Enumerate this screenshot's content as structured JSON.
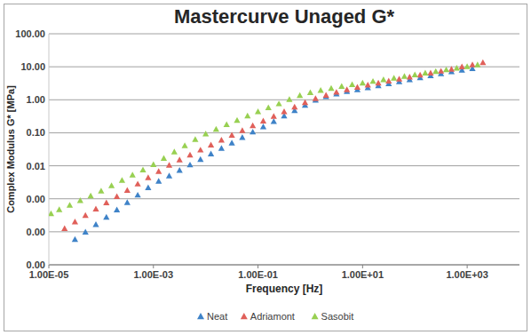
{
  "chart_data": {
    "type": "scatter",
    "title": "Mastercurve Unaged G*",
    "x_label": "Frequency [Hz]",
    "y_label": "Complex Modulus G* [MPa]",
    "log": true,
    "grid": true,
    "legend": "bottom",
    "marker": "triangle",
    "xlim": [
      1e-05,
      10000
    ],
    "xticks": [
      {
        "value": 1e-05,
        "label": "1.00E-05"
      },
      {
        "value": 0.001,
        "label": "1.00E-03"
      },
      {
        "value": 0.1,
        "label": "1.00E-01"
      },
      {
        "value": 10,
        "label": "1.00E+01"
      },
      {
        "value": 1000,
        "label": "1.00E+03"
      }
    ],
    "ylim": [
      1e-05,
      100
    ],
    "yticks": [
      {
        "value": 1e-05,
        "label": "0.00"
      },
      {
        "value": 0.0001,
        "label": "0.00"
      },
      {
        "value": 0.001,
        "label": "0.00"
      },
      {
        "value": 0.01,
        "label": "0.01"
      },
      {
        "value": 0.1,
        "label": "0.10"
      },
      {
        "value": 1,
        "label": "1.00"
      },
      {
        "value": 10,
        "label": "10.00"
      },
      {
        "value": 100,
        "label": "100.00"
      }
    ],
    "series": [
      {
        "name": "Neat",
        "color": "#3f83c8",
        "x": [
          3.16e-05,
          5.01e-05,
          7.94e-05,
          0.000126,
          0.0002,
          0.000316,
          0.000501,
          0.000794,
          0.00126,
          0.002,
          0.00316,
          0.00501,
          0.00794,
          0.0126,
          0.02,
          0.0316,
          0.0501,
          0.0794,
          0.126,
          0.2,
          0.316,
          0.501,
          0.794,
          1.26,
          2.0,
          3.16,
          5.01,
          7.94,
          12.6,
          20.0,
          31.6,
          50.1,
          79.4,
          126,
          200,
          316,
          501,
          794,
          1260
        ],
        "values": [
          5.9e-05,
          9.9e-05,
          0.000166,
          0.000277,
          0.000463,
          0.000776,
          0.0013,
          0.00218,
          0.00341,
          0.005,
          0.00733,
          0.0107,
          0.0157,
          0.0231,
          0.0338,
          0.0495,
          0.0726,
          0.106,
          0.152,
          0.222,
          0.324,
          0.472,
          0.689,
          0.98,
          1.26,
          1.51,
          1.78,
          2.04,
          2.34,
          2.69,
          3.09,
          3.55,
          4.07,
          4.68,
          5.37,
          6.17,
          7.08,
          7.94,
          8.91
        ]
      },
      {
        "name": "Adriamont",
        "color": "#e0605a",
        "x": [
          2e-05,
          3.16e-05,
          5.01e-05,
          7.94e-05,
          0.000126,
          0.0002,
          0.000316,
          0.000501,
          0.000794,
          0.00126,
          0.002,
          0.00316,
          0.00501,
          0.00794,
          0.0126,
          0.02,
          0.0316,
          0.0501,
          0.0794,
          0.126,
          0.2,
          0.316,
          0.501,
          0.794,
          1.26,
          2.0,
          3.16,
          5.01,
          7.94,
          12.6,
          20.0,
          31.6,
          50.1,
          79.4,
          126,
          200,
          316,
          501,
          794,
          1260,
          2000
        ],
        "values": [
          0.000126,
          0.0002,
          0.000316,
          0.00049,
          0.000759,
          0.00117,
          0.00182,
          0.00282,
          0.00437,
          0.00676,
          0.0105,
          0.0151,
          0.0214,
          0.0302,
          0.0427,
          0.0603,
          0.0851,
          0.117,
          0.166,
          0.229,
          0.316,
          0.437,
          0.603,
          0.832,
          1.1,
          1.38,
          1.7,
          2.04,
          2.4,
          2.82,
          3.24,
          3.72,
          4.27,
          4.9,
          5.62,
          6.46,
          7.41,
          8.51,
          10.0,
          11.5,
          13.5
        ]
      },
      {
        "name": "Sasobit",
        "color": "#98d052",
        "x": [
          1.1e-05,
          1.58e-05,
          2.51e-05,
          3.98e-05,
          6.31e-05,
          0.0001,
          0.000158,
          0.000251,
          0.000398,
          0.000631,
          0.001,
          0.00158,
          0.00251,
          0.00398,
          0.00631,
          0.01,
          0.0158,
          0.0251,
          0.0398,
          0.0631,
          0.1,
          0.158,
          0.251,
          0.398,
          0.631,
          1.0,
          1.58,
          2.51,
          3.98,
          6.31,
          10.0,
          15.8,
          25.1,
          39.8,
          63.1,
          100,
          158,
          251,
          398,
          631,
          1000,
          1580
        ],
        "values": [
          0.000355,
          0.000468,
          0.000646,
          0.000891,
          0.00123,
          0.00174,
          0.00251,
          0.00363,
          0.00525,
          0.00759,
          0.011,
          0.017,
          0.0263,
          0.0407,
          0.0631,
          0.0933,
          0.129,
          0.178,
          0.24,
          0.324,
          0.437,
          0.575,
          0.759,
          1.02,
          1.35,
          1.66,
          1.95,
          2.24,
          2.57,
          2.88,
          3.24,
          3.63,
          4.07,
          4.57,
          5.13,
          5.75,
          6.46,
          7.24,
          8.13,
          9.12,
          10.2,
          11.5
        ]
      }
    ]
  }
}
